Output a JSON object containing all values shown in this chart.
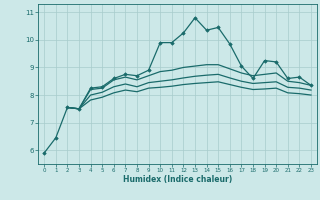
{
  "xlabel": "Humidex (Indice chaleur)",
  "bg_color": "#cce8e8",
  "line_color": "#1a6b6b",
  "grid_color": "#a8cccc",
  "xlim": [
    -0.5,
    23.5
  ],
  "ylim": [
    5.5,
    11.3
  ],
  "xticks": [
    0,
    1,
    2,
    3,
    4,
    5,
    6,
    7,
    8,
    9,
    10,
    11,
    12,
    13,
    14,
    15,
    16,
    17,
    18,
    19,
    20,
    21,
    22,
    23
  ],
  "yticks": [
    6,
    7,
    8,
    9,
    10,
    11
  ],
  "line1_x": [
    0,
    1,
    2,
    3,
    4,
    5,
    6,
    7,
    8,
    9,
    10,
    11,
    12,
    13,
    14,
    15,
    16,
    17,
    18,
    19,
    20,
    21,
    22,
    23
  ],
  "line1_y": [
    5.9,
    6.45,
    7.55,
    7.5,
    8.25,
    8.3,
    8.6,
    8.75,
    8.7,
    8.9,
    9.9,
    9.9,
    10.25,
    10.8,
    10.35,
    10.45,
    9.85,
    9.05,
    8.6,
    9.25,
    9.2,
    8.6,
    8.65,
    8.35
  ],
  "line2_x": [
    2,
    3,
    4,
    5,
    6,
    7,
    8,
    9,
    10,
    11,
    12,
    13,
    14,
    15,
    16,
    17,
    18,
    19,
    20,
    21,
    22,
    23
  ],
  "line2_y": [
    7.55,
    7.5,
    8.2,
    8.25,
    8.55,
    8.65,
    8.55,
    8.7,
    8.85,
    8.9,
    9.0,
    9.05,
    9.1,
    9.1,
    8.95,
    8.8,
    8.7,
    8.75,
    8.8,
    8.5,
    8.45,
    8.35
  ],
  "line3_x": [
    2,
    3,
    4,
    5,
    6,
    7,
    8,
    9,
    10,
    11,
    12,
    13,
    14,
    15,
    16,
    17,
    18,
    19,
    20,
    21,
    22,
    23
  ],
  "line3_y": [
    7.55,
    7.5,
    8.0,
    8.1,
    8.3,
    8.4,
    8.3,
    8.45,
    8.5,
    8.55,
    8.62,
    8.68,
    8.72,
    8.75,
    8.62,
    8.5,
    8.42,
    8.45,
    8.48,
    8.28,
    8.25,
    8.18
  ],
  "line4_x": [
    2,
    3,
    4,
    5,
    6,
    7,
    8,
    9,
    10,
    11,
    12,
    13,
    14,
    15,
    16,
    17,
    18,
    19,
    20,
    21,
    22,
    23
  ],
  "line4_y": [
    7.55,
    7.5,
    7.82,
    7.92,
    8.08,
    8.18,
    8.12,
    8.25,
    8.28,
    8.32,
    8.38,
    8.42,
    8.45,
    8.48,
    8.38,
    8.28,
    8.2,
    8.22,
    8.25,
    8.08,
    8.05,
    8.0
  ]
}
